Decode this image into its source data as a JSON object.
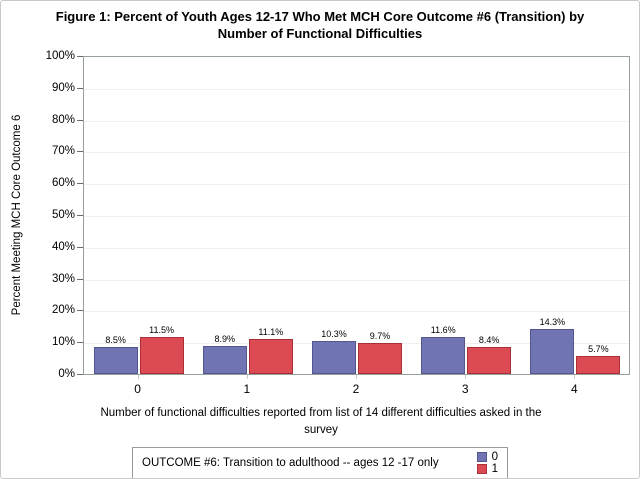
{
  "figure": {
    "title_line1": "Figure 1: Percent of Youth Ages 12-17 Who Met MCH Core Outcome #6 (Transition) by",
    "title_line2": "Number of Functional Difficulties",
    "xlabel_line1": "Number of functional difficulties reported from list of 14 different difficulties asked in the",
    "xlabel_line2": "survey"
  },
  "chart_data": {
    "type": "bar",
    "title": "Figure 1: Percent of Youth Ages 12-17 Who Met MCH Core Outcome #6 (Transition) by Number of Functional Difficulties",
    "categories": [
      "0",
      "1",
      "2",
      "3",
      "4"
    ],
    "series": [
      {
        "name": "0",
        "color": "#7174B3",
        "border_color": "#53568F",
        "values": [
          8.5,
          8.9,
          10.3,
          11.6,
          14.3
        ]
      },
      {
        "name": "1",
        "color": "#DC4B53",
        "border_color": "#AA3038",
        "values": [
          11.5,
          11.1,
          9.7,
          8.4,
          5.7
        ]
      }
    ],
    "value_labels": [
      [
        "8.5%",
        "8.9%",
        "10.3%",
        "11.6%",
        "14.3%"
      ],
      [
        "11.5%",
        "11.1%",
        "9.7%",
        "8.4%",
        "5.7%"
      ]
    ],
    "xlabel": "Number of functional difficulties reported from list of 14 different difficulties asked in the survey",
    "ylabel": "Percent Meeting MCH Core Outcome 6",
    "ylim": [
      0,
      100
    ],
    "ytick_step": 10,
    "ytick_suffix": "%",
    "grid": true,
    "legend": {
      "position": "bottom",
      "title": "OUTCOME #6: Transition to adulthood -- ages 12 -17 only",
      "entries": [
        {
          "label": "0",
          "color": "#7174B3",
          "border_color": "#53568F"
        },
        {
          "label": "1",
          "color": "#DC4B53",
          "border_color": "#AA3038"
        }
      ]
    }
  }
}
